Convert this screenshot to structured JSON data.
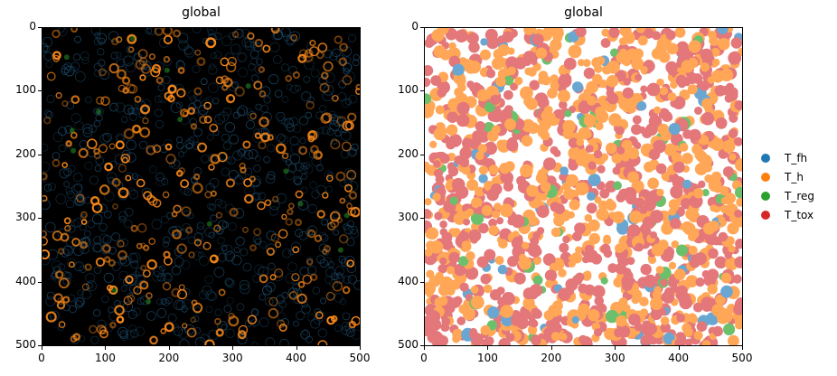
{
  "chart_data": [
    {
      "type": "heatmap",
      "title": "global",
      "xlabel": "",
      "ylabel": "",
      "xlim": [
        0,
        500
      ],
      "ylim": [
        500,
        0
      ],
      "xticks": [
        0,
        100,
        200,
        300,
        400,
        500
      ],
      "yticks": [
        0,
        100,
        200,
        300,
        400,
        500
      ],
      "description": "Multichannel fluorescence image on black background: orange ring-shaped cells, faint blue cell outlines, sparse green spots",
      "channel_colors": {
        "orange": "#ff8c1a",
        "blue": "#1f5a80",
        "green": "#2ca02c"
      }
    },
    {
      "type": "scatter",
      "title": "global",
      "xlabel": "",
      "ylabel": "",
      "xlim": [
        0,
        500
      ],
      "ylim": [
        500,
        0
      ],
      "xticks": [
        0,
        100,
        200,
        300,
        400,
        500
      ],
      "yticks": [
        0,
        100,
        200,
        300,
        400,
        500
      ],
      "grid": false,
      "legend_position": "right",
      "series": [
        {
          "name": "T_fh",
          "color": "#1f77b4",
          "relative_frequency": 0.05
        },
        {
          "name": "T_h",
          "color": "#ff7f0e",
          "relative_frequency": 0.46
        },
        {
          "name": "T_reg",
          "color": "#2ca02c",
          "relative_frequency": 0.03
        },
        {
          "name": "T_tox",
          "color": "#d62728",
          "relative_frequency": 0.46
        }
      ]
    }
  ],
  "panels": {
    "left": {
      "title": "global"
    },
    "right": {
      "title": "global"
    }
  },
  "axis": {
    "ticks": [
      "0",
      "100",
      "200",
      "300",
      "400",
      "500"
    ]
  },
  "legend": {
    "items": [
      {
        "label": "T_fh",
        "color": "#1f77b4"
      },
      {
        "label": "T_h",
        "color": "#ff7f0e"
      },
      {
        "label": "T_reg",
        "color": "#2ca02c"
      },
      {
        "label": "T_tox",
        "color": "#d62728"
      }
    ]
  }
}
